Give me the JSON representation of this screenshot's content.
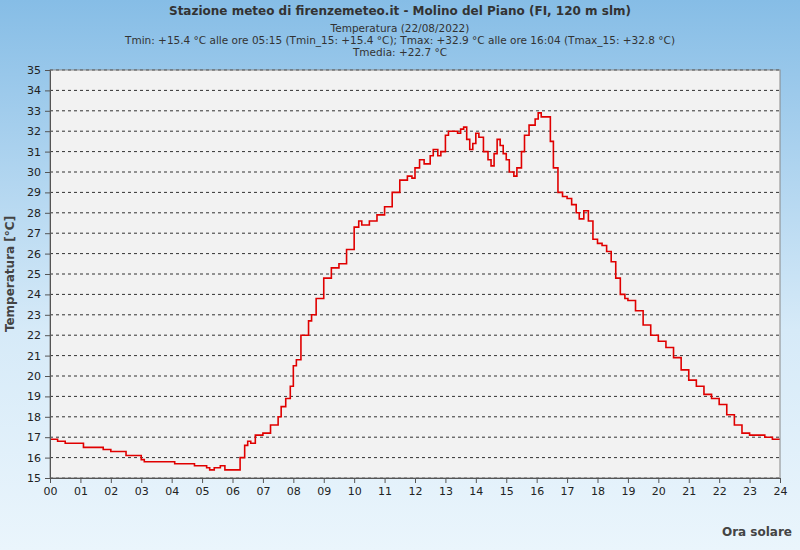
{
  "chart_data": {
    "type": "line",
    "title": "Stazione meteo di firenzemeteo.it - Molino del Piano (FI, 120 m slm)",
    "subtitle": [
      "Temperatura (22/08/2022)",
      "Tmin: +15.4 °C alle ore 05:15 (Tmin_15: +15.4 °C); Tmax: +32.9 °C alle ore 16:04 (Tmax_15: +32.8 °C)",
      "Tmedia: +22.7 °C"
    ],
    "x_label": "Ora solare",
    "y_label": "Temperatura [°C]",
    "color": "#e00000",
    "grid": true,
    "xlim": [
      0,
      24
    ],
    "ylim": [
      15,
      35
    ],
    "xticks": [
      {
        "value": 0,
        "label": "00"
      },
      {
        "value": 1,
        "label": "01"
      },
      {
        "value": 2,
        "label": "02"
      },
      {
        "value": 3,
        "label": "03"
      },
      {
        "value": 4,
        "label": "04"
      },
      {
        "value": 5,
        "label": "05"
      },
      {
        "value": 6,
        "label": "06"
      },
      {
        "value": 7,
        "label": "07"
      },
      {
        "value": 8,
        "label": "08"
      },
      {
        "value": 9,
        "label": "09"
      },
      10,
      11,
      12,
      13,
      14,
      15,
      16,
      17,
      18,
      19,
      20,
      21,
      22,
      23,
      24
    ],
    "yticks": [
      15,
      16,
      17,
      18,
      19,
      20,
      21,
      22,
      23,
      24,
      25,
      26,
      27,
      28,
      29,
      30,
      31,
      32,
      33,
      34,
      35
    ],
    "x": [
      0.0,
      0.25,
      0.5,
      1.0,
      1.1,
      1.5,
      1.75,
      2.0,
      2.25,
      2.5,
      2.75,
      3.0,
      3.1,
      3.5,
      4.0,
      4.1,
      4.5,
      4.75,
      5.0,
      5.15,
      5.25,
      5.4,
      5.6,
      5.75,
      6.0,
      6.1,
      6.25,
      6.4,
      6.5,
      6.6,
      6.75,
      7.0,
      7.25,
      7.5,
      7.6,
      7.75,
      7.9,
      8.0,
      8.1,
      8.25,
      8.5,
      8.6,
      8.75,
      9.0,
      9.25,
      9.5,
      9.6,
      9.75,
      10.0,
      10.15,
      10.25,
      10.5,
      10.75,
      11.0,
      11.25,
      11.5,
      11.75,
      11.9,
      12.0,
      12.15,
      12.3,
      12.5,
      12.6,
      12.75,
      12.85,
      13.0,
      13.1,
      13.25,
      13.4,
      13.5,
      13.6,
      13.7,
      13.8,
      13.9,
      14.0,
      14.1,
      14.25,
      14.4,
      14.5,
      14.6,
      14.7,
      14.8,
      14.9,
      15.0,
      15.1,
      15.25,
      15.35,
      15.5,
      15.6,
      15.75,
      15.85,
      15.95,
      16.05,
      16.15,
      16.35,
      16.45,
      16.55,
      16.7,
      16.85,
      17.0,
      17.15,
      17.3,
      17.4,
      17.55,
      17.7,
      17.85,
      18.0,
      18.15,
      18.3,
      18.45,
      18.6,
      18.75,
      18.9,
      19.0,
      19.25,
      19.5,
      19.75,
      20.0,
      20.25,
      20.5,
      20.75,
      21.0,
      21.25,
      21.5,
      21.75,
      22.0,
      22.25,
      22.5,
      22.75,
      23.0,
      23.5,
      23.75,
      24.0
    ],
    "values": [
      16.9,
      16.8,
      16.7,
      16.7,
      16.5,
      16.5,
      16.4,
      16.3,
      16.3,
      16.1,
      16.1,
      15.9,
      15.8,
      15.8,
      15.8,
      15.7,
      15.7,
      15.6,
      15.6,
      15.5,
      15.4,
      15.5,
      15.6,
      15.4,
      15.4,
      15.4,
      16.0,
      16.6,
      16.8,
      16.7,
      17.1,
      17.2,
      17.6,
      18.0,
      18.5,
      18.9,
      19.5,
      20.5,
      20.8,
      22.0,
      22.7,
      23.0,
      23.8,
      24.8,
      25.3,
      25.5,
      25.5,
      26.2,
      27.3,
      27.6,
      27.4,
      27.6,
      27.9,
      28.3,
      29.0,
      29.6,
      29.8,
      29.7,
      30.2,
      30.6,
      30.4,
      30.8,
      31.1,
      30.8,
      31.0,
      31.8,
      32.0,
      32.0,
      31.9,
      32.1,
      32.2,
      31.6,
      31.1,
      31.4,
      31.9,
      31.7,
      31.0,
      30.6,
      30.3,
      30.9,
      31.6,
      31.3,
      30.9,
      30.6,
      30.0,
      29.8,
      30.2,
      31.0,
      31.8,
      32.3,
      32.3,
      32.6,
      32.9,
      32.7,
      32.7,
      31.5,
      30.2,
      29.0,
      28.8,
      28.7,
      28.4,
      28.0,
      27.7,
      28.1,
      27.6,
      26.7,
      26.5,
      26.4,
      26.1,
      25.6,
      24.8,
      24.0,
      23.8,
      23.7,
      23.2,
      22.5,
      22.0,
      21.7,
      21.4,
      20.9,
      20.3,
      19.8,
      19.5,
      19.1,
      18.9,
      18.6,
      18.1,
      17.6,
      17.2,
      17.1,
      17.0,
      16.9,
      16.9
    ]
  }
}
